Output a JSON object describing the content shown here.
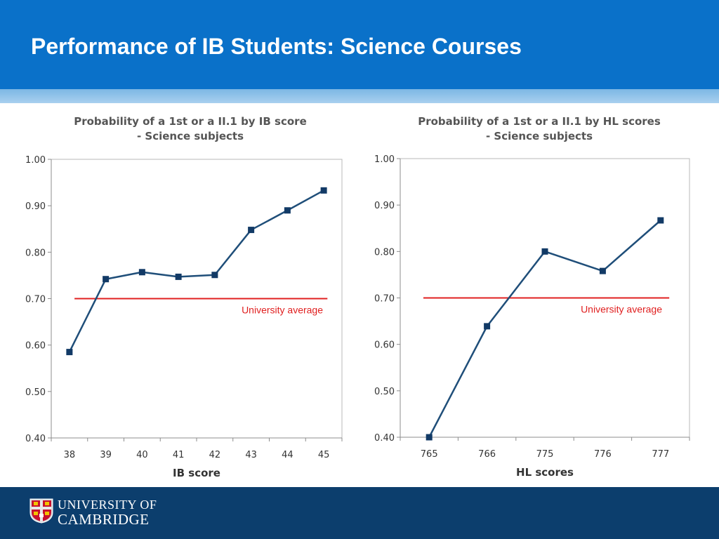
{
  "slide": {
    "title": "Performance of IB Students: Science Courses"
  },
  "colors": {
    "header": "#0a71c9",
    "footer": "#0c3e6d",
    "series": "#1f4e79",
    "reference": "#e02020",
    "title_text": "#555555"
  },
  "footer": {
    "brand_line1": "UNIVERSITY OF",
    "brand_line2": "CAMBRIDGE",
    "logo_icon": "cambridge-crest-icon"
  },
  "chart_data": [
    {
      "type": "line",
      "title": "Probability of a 1st or a II.1 by IB score",
      "subtitle": "- Science subjects",
      "xlabel": "IB score",
      "ylabel": "",
      "categories": [
        "38",
        "39",
        "40",
        "41",
        "42",
        "43",
        "44",
        "45"
      ],
      "series": [
        {
          "values": [
            0.585,
            0.742,
            0.757,
            0.747,
            0.751,
            0.848,
            0.89,
            0.933
          ]
        }
      ],
      "ylim": [
        0.4,
        1.0
      ],
      "yticks": [
        "0.40",
        "0.50",
        "0.60",
        "0.70",
        "0.80",
        "0.90",
        "1.00"
      ],
      "reference_line": {
        "value": 0.7,
        "label": "University average"
      },
      "grid": false,
      "legend": "none"
    },
    {
      "type": "line",
      "title": "Probability of a 1st or a II.1 by HL scores",
      "subtitle": "- Science subjects",
      "xlabel": "HL scores",
      "ylabel": "",
      "categories": [
        "765",
        "766",
        "775",
        "776",
        "777"
      ],
      "series": [
        {
          "values": [
            0.4,
            0.639,
            0.8,
            0.758,
            0.867
          ]
        }
      ],
      "ylim": [
        0.4,
        1.0
      ],
      "yticks": [
        "0.40",
        "0.50",
        "0.60",
        "0.70",
        "0.80",
        "0.90",
        "1.00"
      ],
      "reference_line": {
        "value": 0.7,
        "label": "University average"
      },
      "grid": false,
      "legend": "none"
    }
  ]
}
